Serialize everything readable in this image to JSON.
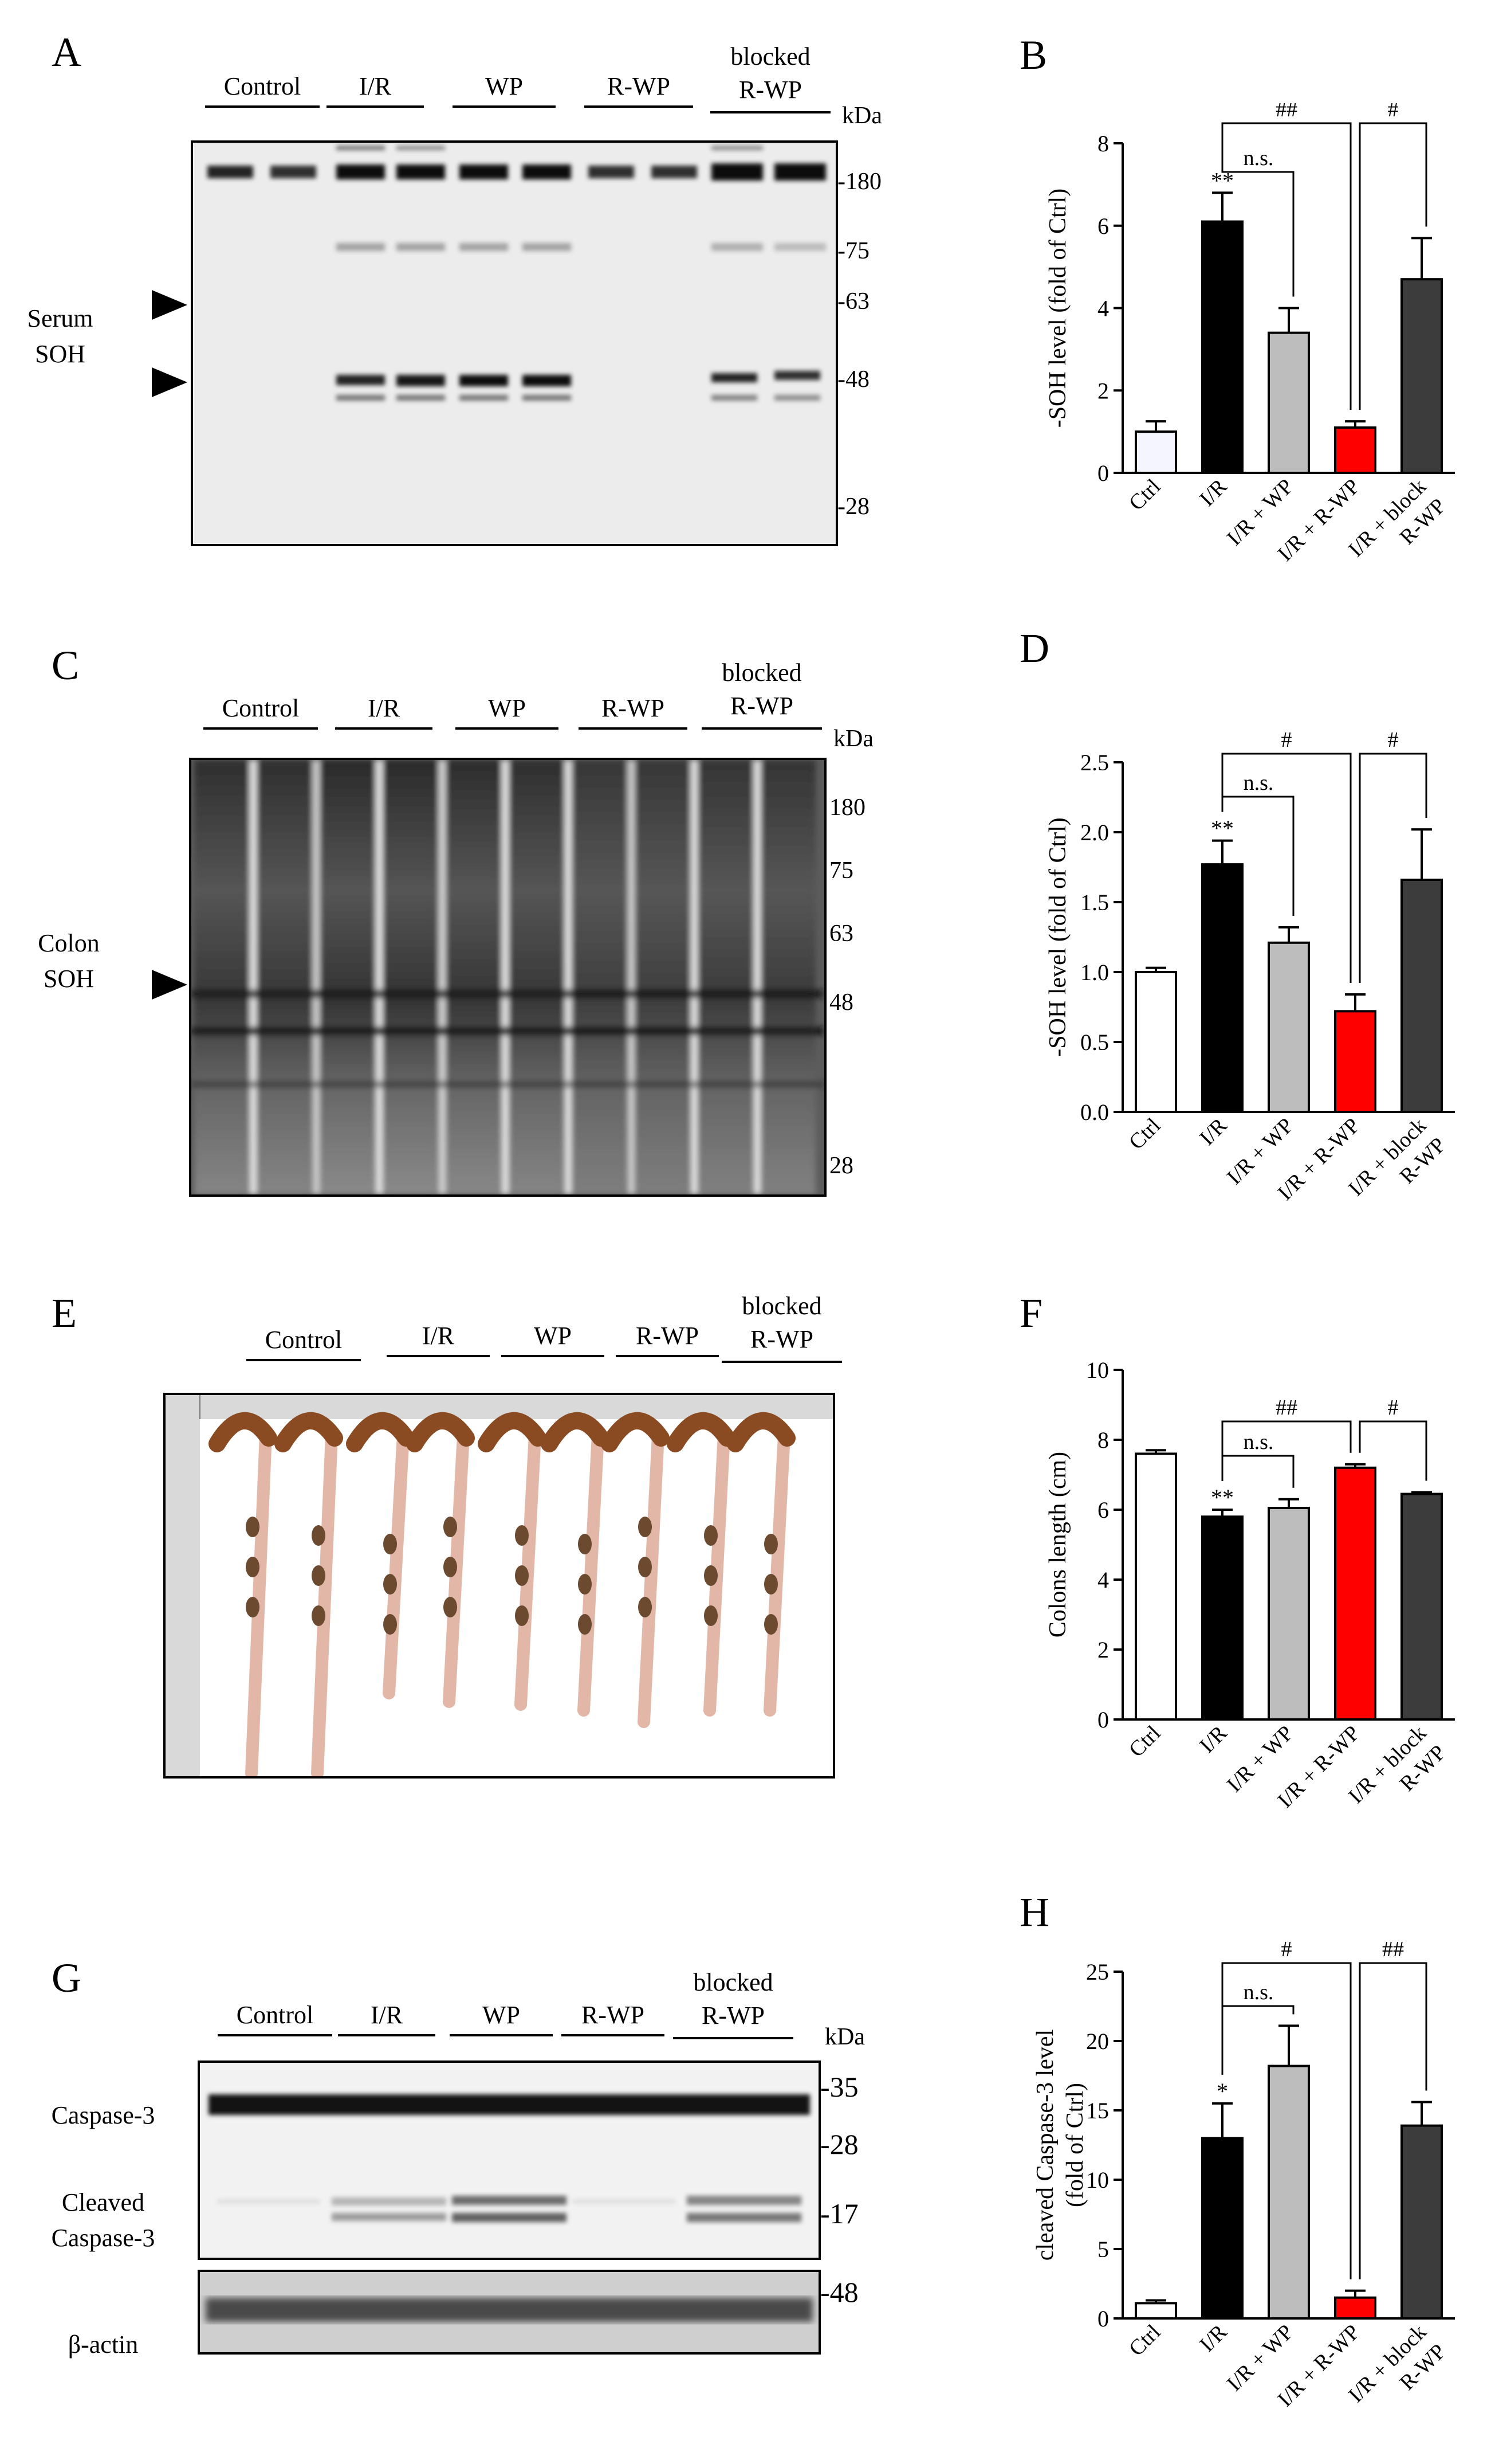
{
  "panels": {
    "A": {
      "letter": "A",
      "groups": [
        "Control",
        "I/R",
        "WP",
        "R-WP",
        "blocked",
        "R-WP"
      ],
      "kda": "kDa",
      "markers": [
        "-180",
        "-75",
        "-63",
        "-48",
        "-28"
      ],
      "side_label": [
        "Serum",
        "SOH"
      ]
    },
    "C": {
      "letter": "C",
      "groups": [
        "Control",
        "I/R",
        "WP",
        "R-WP",
        "blocked",
        "R-WP"
      ],
      "kda": "kDa",
      "markers": [
        "180",
        "75",
        "63",
        "48",
        "28"
      ],
      "side_label": [
        "Colon",
        "SOH"
      ]
    },
    "E": {
      "letter": "E",
      "groups": [
        "Control",
        "I/R",
        "WP",
        "R-WP",
        "blocked",
        "R-WP"
      ]
    },
    "G": {
      "letter": "G",
      "groups": [
        "Control",
        "I/R",
        "WP",
        "R-WP",
        "blocked",
        "R-WP"
      ],
      "kda": "kDa",
      "markers": [
        "-35",
        "-28",
        "-17",
        "-48"
      ],
      "labels": [
        "Caspase-3",
        "Cleaved",
        "Caspase-3",
        "β-actin"
      ]
    }
  },
  "chart_data": [
    {
      "panel": "B",
      "type": "bar",
      "categories": [
        "Ctrl",
        "I/R",
        "I/R + WP",
        "I/R + R-WP",
        "I/R + block"
      ],
      "category_line2": [
        "",
        "",
        "",
        "",
        "R-WP"
      ],
      "values": [
        1.0,
        6.1,
        3.4,
        1.1,
        4.7
      ],
      "errors": [
        0.25,
        0.7,
        0.6,
        0.15,
        1.0
      ],
      "colors": [
        "#f5f5ff",
        "#000000",
        "#bdbdbd",
        "#ff0000",
        "#3c3c3c"
      ],
      "ylabel": "-SOH level (fold of Ctrl)",
      "ylim": [
        0,
        8
      ],
      "yticks": [
        "0",
        "2",
        "4",
        "6",
        "8"
      ],
      "sig_star": "**",
      "sig_ns": "n.s.",
      "sig_left": "##",
      "sig_right": "#"
    },
    {
      "panel": "D",
      "type": "bar",
      "categories": [
        "Ctrl",
        "I/R",
        "I/R + WP",
        "I/R + R-WP",
        "I/R + block"
      ],
      "category_line2": [
        "",
        "",
        "",
        "",
        "R-WP"
      ],
      "values": [
        1.0,
        1.77,
        1.21,
        0.72,
        1.66
      ],
      "errors": [
        0.03,
        0.17,
        0.11,
        0.12,
        0.36
      ],
      "colors": [
        "#ffffff",
        "#000000",
        "#bdbdbd",
        "#ff0000",
        "#3c3c3c"
      ],
      "ylabel": "-SOH level (fold of Ctrl)",
      "ylim": [
        0,
        2.5
      ],
      "yticks": [
        "0.0",
        "0.5",
        "1.0",
        "1.5",
        "2.0",
        "2.5"
      ],
      "sig_star": "**",
      "sig_ns": "n.s.",
      "sig_left": "#",
      "sig_right": "#"
    },
    {
      "panel": "F",
      "type": "bar",
      "categories": [
        "Ctrl",
        "I/R",
        "I/R + WP",
        "I/R + R-WP",
        "I/R + block"
      ],
      "category_line2": [
        "",
        "",
        "",
        "",
        "R-WP"
      ],
      "values": [
        7.6,
        5.8,
        6.05,
        7.2,
        6.45
      ],
      "errors": [
        0.1,
        0.2,
        0.25,
        0.1,
        0.05
      ],
      "colors": [
        "#ffffff",
        "#000000",
        "#bdbdbd",
        "#ff0000",
        "#3c3c3c"
      ],
      "ylabel": "Colons length (cm)",
      "ylim": [
        0,
        10
      ],
      "yticks": [
        "0",
        "2",
        "4",
        "6",
        "8",
        "10"
      ],
      "sig_star": "**",
      "sig_ns": "n.s.",
      "sig_left": "##",
      "sig_right": "#"
    },
    {
      "panel": "H",
      "type": "bar",
      "categories": [
        "Ctrl",
        "I/R",
        "I/R + WP",
        "I/R + R-WP",
        "I/R + block"
      ],
      "category_line2": [
        "",
        "",
        "",
        "",
        "R-WP"
      ],
      "values": [
        1.1,
        13.0,
        18.2,
        1.5,
        13.9
      ],
      "errors": [
        0.2,
        2.5,
        2.9,
        0.5,
        1.7
      ],
      "colors": [
        "#ffffff",
        "#000000",
        "#bdbdbd",
        "#ff0000",
        "#3c3c3c"
      ],
      "ylabel": "cleaved Caspase-3 level",
      "ylabel2": "(fold of Ctrl)",
      "ylim": [
        0,
        25
      ],
      "yticks": [
        "0",
        "5",
        "10",
        "15",
        "20",
        "25"
      ],
      "sig_star": "*",
      "sig_ns": "n.s.",
      "sig_left": "#",
      "sig_right": "##"
    }
  ]
}
